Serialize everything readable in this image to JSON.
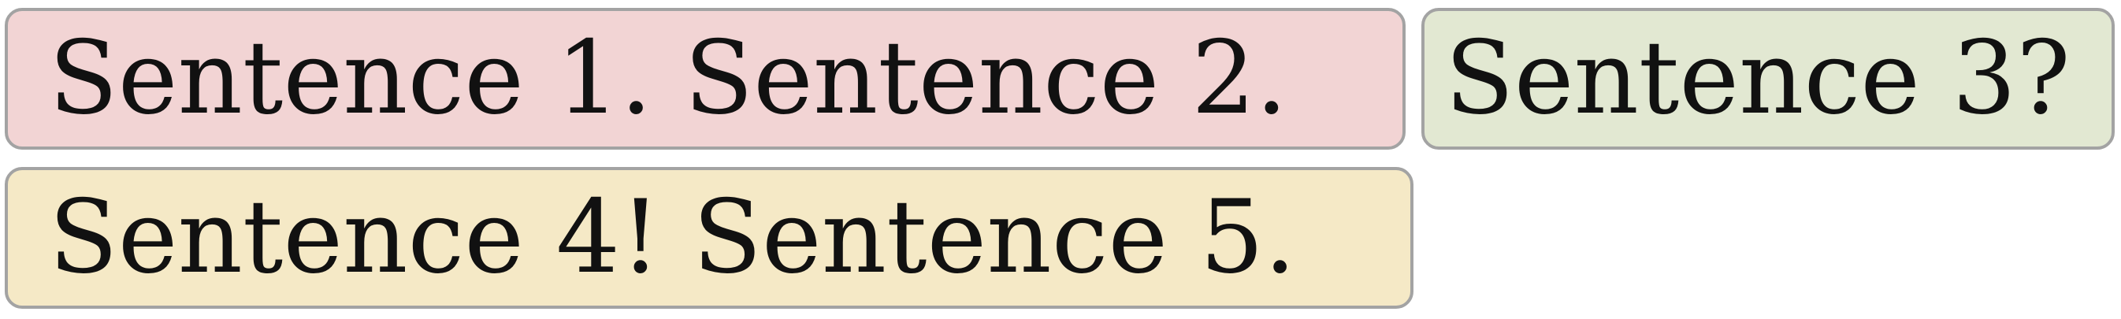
{
  "segments": [
    {
      "text": "Sentence 1. Sentence 2.",
      "color": "#f2d4d4"
    },
    {
      "text": "Sentence 3?",
      "color": "#e2e8d2"
    },
    {
      "text": "Sentence 4! Sentence 5.",
      "color": "#f5e9c6"
    }
  ]
}
